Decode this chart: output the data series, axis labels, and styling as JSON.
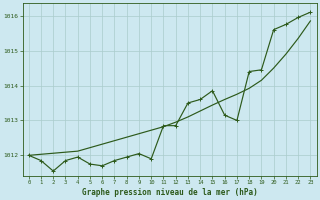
{
  "title": "Graphe pression niveau de la mer (hPa)",
  "background_color": "#cde8f0",
  "grid_color": "#aacccc",
  "line_color": "#2d5a1b",
  "x_labels": [
    "0",
    "1",
    "2",
    "3",
    "4",
    "5",
    "6",
    "7",
    "8",
    "9",
    "10",
    "11",
    "12",
    "13",
    "14",
    "15",
    "16",
    "17",
    "18",
    "19",
    "20",
    "21",
    "22",
    "23"
  ],
  "x_values": [
    0,
    1,
    2,
    3,
    4,
    5,
    6,
    7,
    8,
    9,
    10,
    11,
    12,
    13,
    14,
    15,
    16,
    17,
    18,
    19,
    20,
    21,
    22,
    23
  ],
  "y_actual": [
    1012.0,
    1011.85,
    1011.55,
    1011.85,
    1011.95,
    1011.75,
    1011.7,
    1011.85,
    1011.95,
    1012.05,
    1011.9,
    1012.85,
    1012.85,
    1013.5,
    1013.6,
    1013.85,
    1013.15,
    1013.0,
    1014.4,
    1014.45,
    1015.6,
    1015.75,
    1015.95,
    1016.1
  ],
  "y_smooth": [
    1012.0,
    1012.03,
    1012.06,
    1012.09,
    1012.12,
    1012.22,
    1012.32,
    1012.42,
    1012.52,
    1012.62,
    1012.72,
    1012.82,
    1012.95,
    1013.1,
    1013.27,
    1013.44,
    1013.6,
    1013.75,
    1013.92,
    1014.15,
    1014.5,
    1014.9,
    1015.35,
    1015.85
  ],
  "ylim": [
    1011.4,
    1016.35
  ],
  "yticks": [
    1012,
    1013,
    1014,
    1015,
    1016
  ],
  "xlim": [
    -0.5,
    23.5
  ]
}
